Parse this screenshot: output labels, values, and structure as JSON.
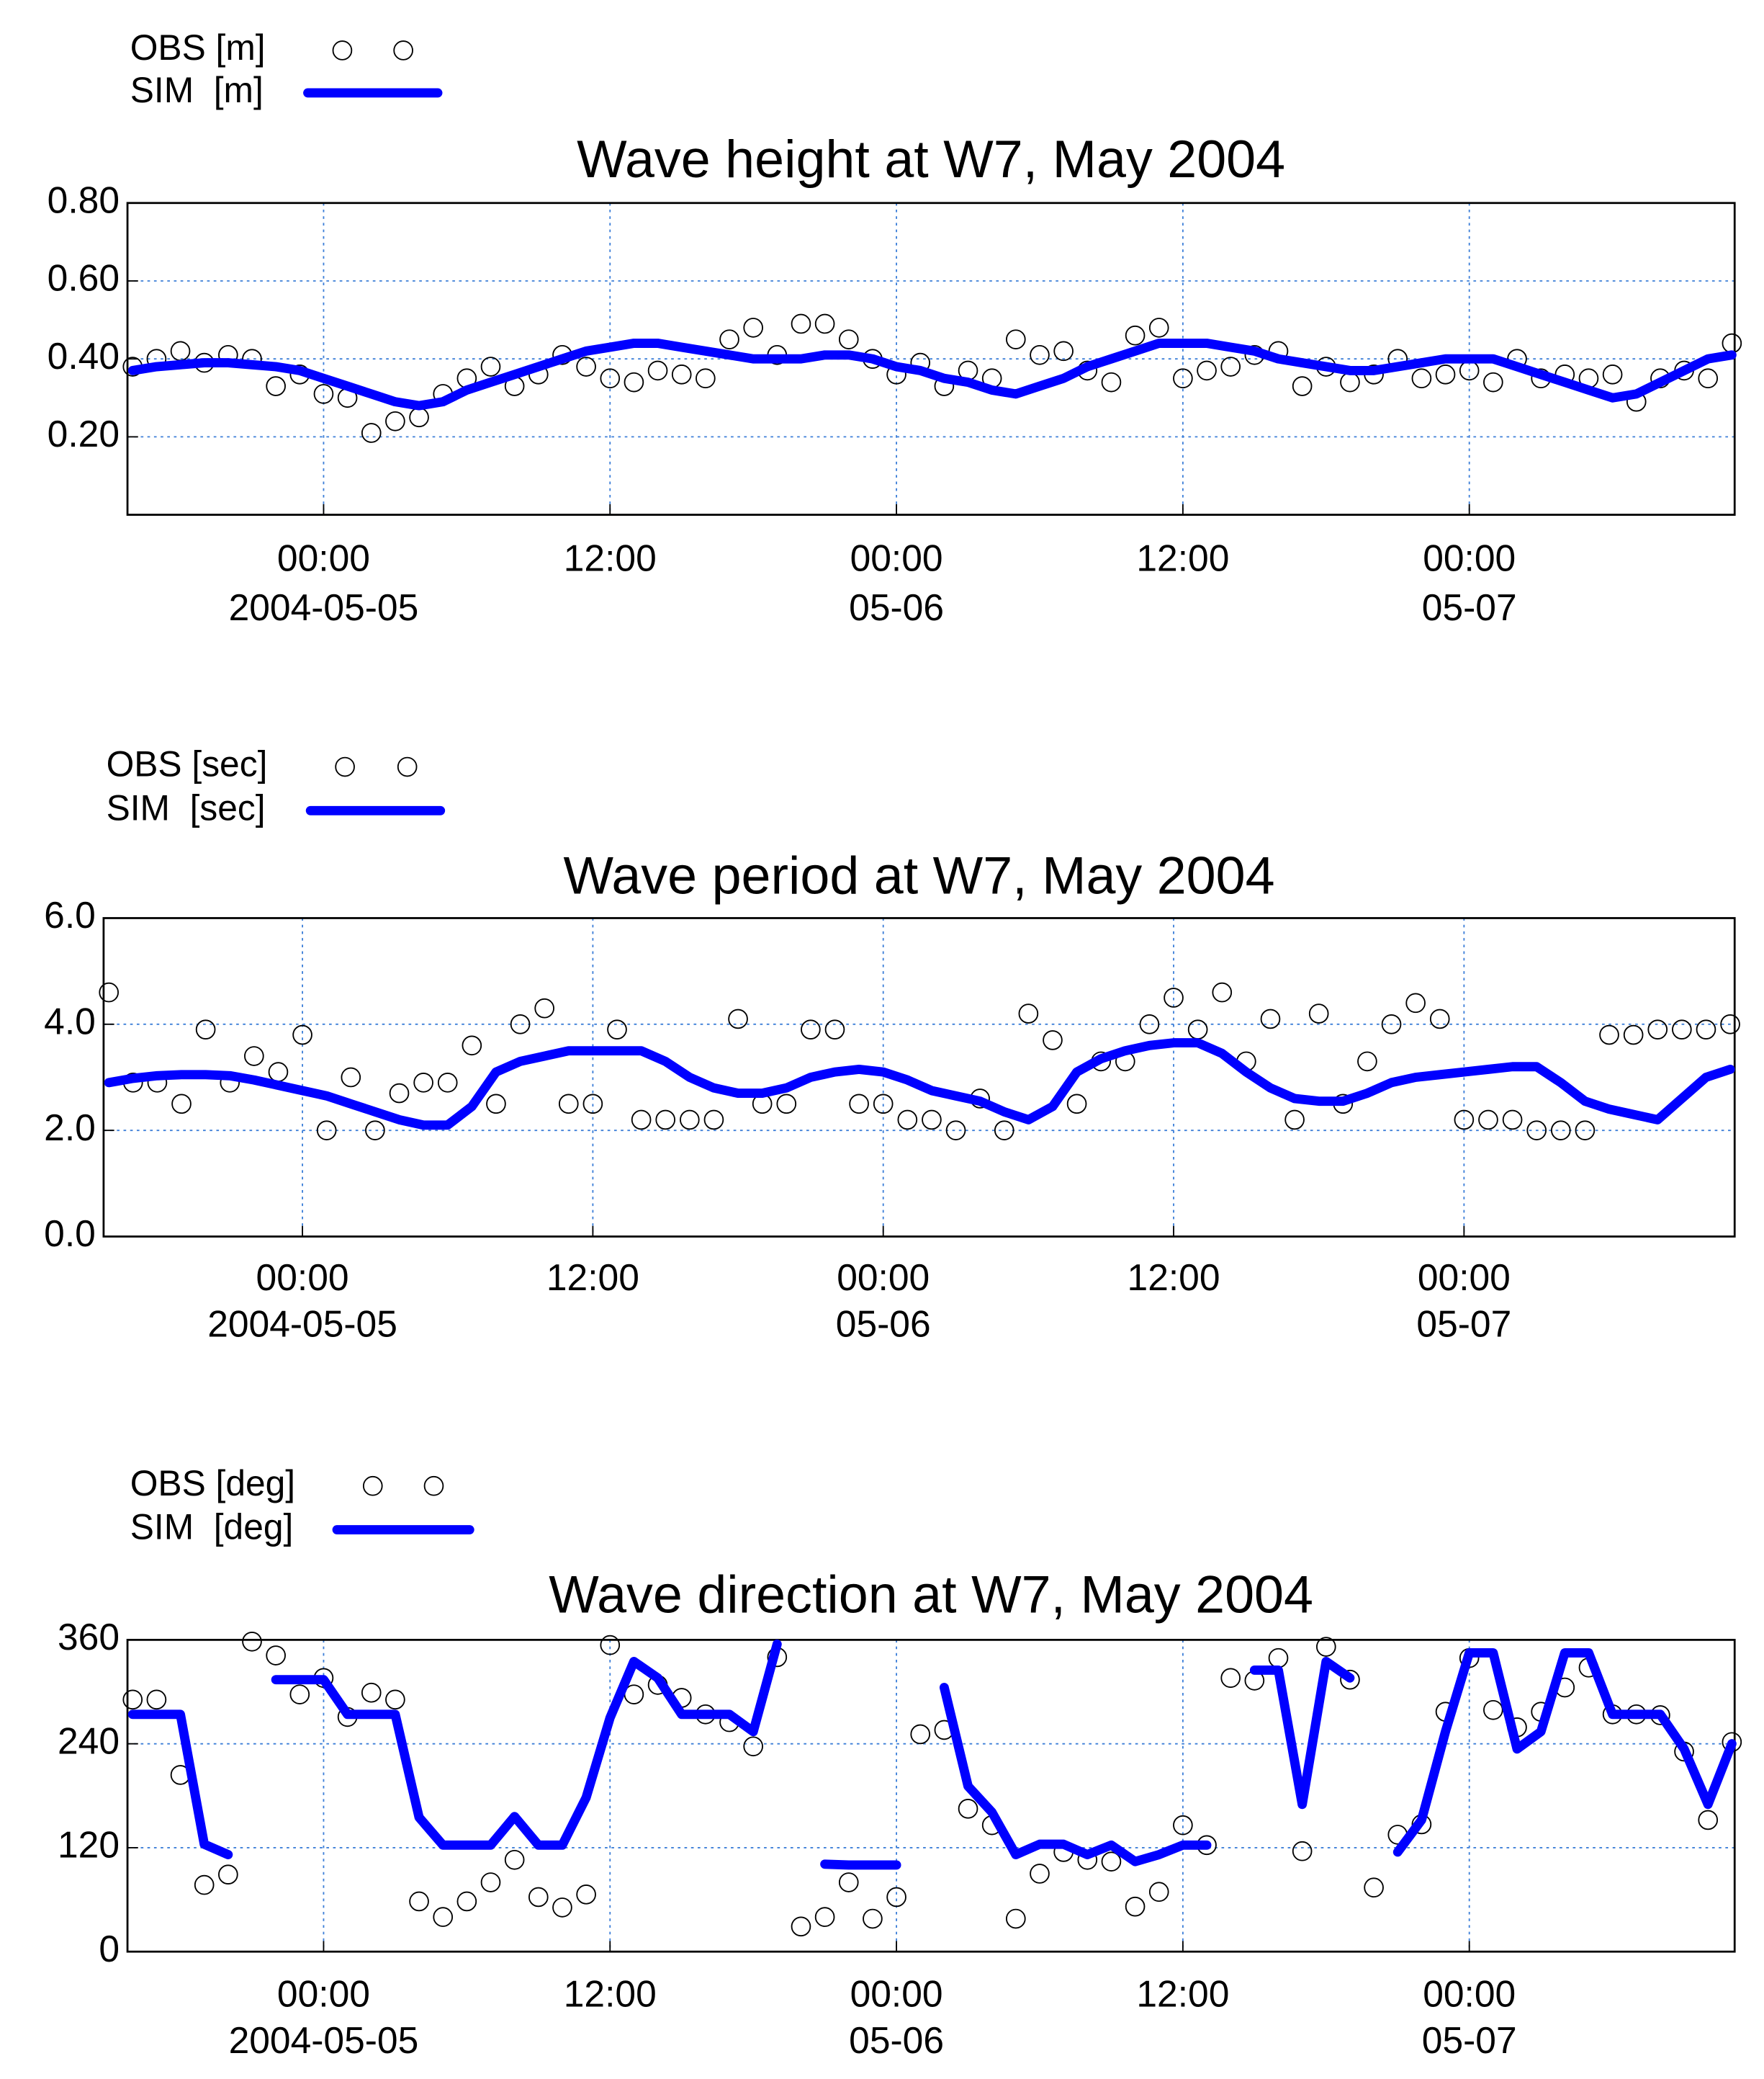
{
  "chart_data": [
    {
      "type": "line",
      "title": "Wave height at W7, May 2004",
      "x": [
        "2004-05-04 16:00",
        "2004-05-04 17:00",
        "2004-05-04 18:00",
        "2004-05-04 19:00",
        "2004-05-04 20:00",
        "2004-05-04 21:00",
        "2004-05-04 22:00",
        "2004-05-04 23:00",
        "2004-05-05 00:00",
        "2004-05-05 01:00",
        "2004-05-05 02:00",
        "2004-05-05 03:00",
        "2004-05-05 04:00",
        "2004-05-05 05:00",
        "2004-05-05 06:00",
        "2004-05-05 07:00",
        "2004-05-05 08:00",
        "2004-05-05 09:00",
        "2004-05-05 10:00",
        "2004-05-05 11:00",
        "2004-05-05 12:00",
        "2004-05-05 13:00",
        "2004-05-05 14:00",
        "2004-05-05 15:00",
        "2004-05-05 16:00",
        "2004-05-05 17:00",
        "2004-05-05 18:00",
        "2004-05-05 19:00",
        "2004-05-05 20:00",
        "2004-05-05 21:00",
        "2004-05-05 22:00",
        "2004-05-05 23:00",
        "2004-05-06 00:00",
        "2004-05-06 01:00",
        "2004-05-06 02:00",
        "2004-05-06 03:00",
        "2004-05-06 04:00",
        "2004-05-06 05:00",
        "2004-05-06 06:00",
        "2004-05-06 07:00",
        "2004-05-06 08:00",
        "2004-05-06 09:00",
        "2004-05-06 10:00",
        "2004-05-06 11:00",
        "2004-05-06 12:00",
        "2004-05-06 13:00",
        "2004-05-06 14:00",
        "2004-05-06 15:00",
        "2004-05-06 16:00",
        "2004-05-06 17:00",
        "2004-05-06 18:00",
        "2004-05-06 19:00",
        "2004-05-06 20:00",
        "2004-05-06 21:00",
        "2004-05-06 22:00",
        "2004-05-06 23:00",
        "2004-05-07 00:00",
        "2004-05-07 01:00",
        "2004-05-07 02:00",
        "2004-05-07 03:00",
        "2004-05-07 04:00",
        "2004-05-07 05:00",
        "2004-05-07 06:00",
        "2004-05-07 07:00",
        "2004-05-07 08:00",
        "2004-05-07 09:00",
        "2004-05-07 10:00",
        "2004-05-07 11:00"
      ],
      "series": [
        {
          "name": "OBS [m]",
          "mode": "markers",
          "color": "#000000",
          "values": [
            0.38,
            0.4,
            0.42,
            0.39,
            0.41,
            0.4,
            0.33,
            0.36,
            0.31,
            0.3,
            0.21,
            0.24,
            0.25,
            0.31,
            0.35,
            0.38,
            0.33,
            0.36,
            0.41,
            0.38,
            0.35,
            0.34,
            0.37,
            0.36,
            0.35,
            0.45,
            0.48,
            0.41,
            0.49,
            0.49,
            0.45,
            0.4,
            0.36,
            0.39,
            0.33,
            0.37,
            0.35,
            0.45,
            0.41,
            0.42,
            0.37,
            0.34,
            0.46,
            0.48,
            0.35,
            0.37,
            0.38,
            0.41,
            0.42,
            0.33,
            0.38,
            0.34,
            0.36,
            0.4,
            0.35,
            0.36,
            0.37,
            0.34,
            0.4,
            0.35,
            0.36,
            0.35,
            0.36,
            0.29,
            0.35,
            0.37,
            0.35,
            0.44
          ]
        },
        {
          "name": "SIM  [m]",
          "mode": "line",
          "color": "#0000ff",
          "values": [
            0.37,
            0.38,
            0.385,
            0.39,
            0.39,
            0.385,
            0.38,
            0.37,
            0.35,
            0.33,
            0.31,
            0.29,
            0.28,
            0.29,
            0.32,
            0.34,
            0.36,
            0.38,
            0.4,
            0.42,
            0.43,
            0.44,
            0.44,
            0.43,
            0.42,
            0.41,
            0.4,
            0.4,
            0.4,
            0.41,
            0.41,
            0.4,
            0.38,
            0.37,
            0.35,
            0.34,
            0.32,
            0.31,
            0.33,
            0.35,
            0.38,
            0.4,
            0.42,
            0.44,
            0.44,
            0.44,
            0.43,
            0.42,
            0.4,
            0.39,
            0.38,
            0.37,
            0.37,
            0.38,
            0.39,
            0.4,
            0.4,
            0.4,
            0.38,
            0.36,
            0.34,
            0.32,
            0.3,
            0.31,
            0.34,
            0.37,
            0.4,
            0.41
          ]
        }
      ],
      "xlim": [
        "2004-05-04 15:47",
        "2004-05-07 11:07"
      ],
      "xticks": [
        {
          "value": "2004-05-05 00:00",
          "label": [
            "00:00",
            "2004-05-05"
          ]
        },
        {
          "value": "2004-05-05 12:00",
          "label": [
            "12:00"
          ]
        },
        {
          "value": "2004-05-06 00:00",
          "label": [
            "00:00",
            "05-06"
          ]
        },
        {
          "value": "2004-05-06 12:00",
          "label": [
            "12:00"
          ]
        },
        {
          "value": "2004-05-07 00:00",
          "label": [
            "00:00",
            "05-07"
          ]
        }
      ],
      "ylim": [
        0,
        0.8
      ],
      "yticks": [
        {
          "value": 0.2,
          "label": "0.20"
        },
        {
          "value": 0.4,
          "label": "0.40"
        },
        {
          "value": 0.6,
          "label": "0.60"
        },
        {
          "value": 0.8,
          "label": "0.80"
        }
      ],
      "grid": true
    },
    {
      "type": "line",
      "title": "Wave period at W7, May 2004",
      "x": [
        "2004-05-04 16:00",
        "2004-05-04 17:00",
        "2004-05-04 18:00",
        "2004-05-04 19:00",
        "2004-05-04 20:00",
        "2004-05-04 21:00",
        "2004-05-04 22:00",
        "2004-05-04 23:00",
        "2004-05-05 00:00",
        "2004-05-05 01:00",
        "2004-05-05 02:00",
        "2004-05-05 03:00",
        "2004-05-05 04:00",
        "2004-05-05 05:00",
        "2004-05-05 06:00",
        "2004-05-05 07:00",
        "2004-05-05 08:00",
        "2004-05-05 09:00",
        "2004-05-05 10:00",
        "2004-05-05 11:00",
        "2004-05-05 12:00",
        "2004-05-05 13:00",
        "2004-05-05 14:00",
        "2004-05-05 15:00",
        "2004-05-05 16:00",
        "2004-05-05 17:00",
        "2004-05-05 18:00",
        "2004-05-05 19:00",
        "2004-05-05 20:00",
        "2004-05-05 21:00",
        "2004-05-05 22:00",
        "2004-05-05 23:00",
        "2004-05-06 00:00",
        "2004-05-06 01:00",
        "2004-05-06 02:00",
        "2004-05-06 03:00",
        "2004-05-06 04:00",
        "2004-05-06 05:00",
        "2004-05-06 06:00",
        "2004-05-06 07:00",
        "2004-05-06 08:00",
        "2004-05-06 09:00",
        "2004-05-06 10:00",
        "2004-05-06 11:00",
        "2004-05-06 12:00",
        "2004-05-06 13:00",
        "2004-05-06 14:00",
        "2004-05-06 15:00",
        "2004-05-06 16:00",
        "2004-05-06 17:00",
        "2004-05-06 18:00",
        "2004-05-06 19:00",
        "2004-05-06 20:00",
        "2004-05-06 21:00",
        "2004-05-06 22:00",
        "2004-05-06 23:00",
        "2004-05-07 00:00",
        "2004-05-07 01:00",
        "2004-05-07 02:00",
        "2004-05-07 03:00",
        "2004-05-07 04:00",
        "2004-05-07 05:00",
        "2004-05-07 06:00",
        "2004-05-07 07:00",
        "2004-05-07 08:00",
        "2004-05-07 09:00",
        "2004-05-07 10:00",
        "2004-05-07 11:00"
      ],
      "series": [
        {
          "name": "OBS [sec]",
          "mode": "markers",
          "color": "#000000",
          "values": [
            4.6,
            2.9,
            2.9,
            2.5,
            3.9,
            2.9,
            3.4,
            3.1,
            3.8,
            2.0,
            3.0,
            2.0,
            2.7,
            2.9,
            2.9,
            3.6,
            2.5,
            4.0,
            4.3,
            2.5,
            2.5,
            3.9,
            2.2,
            2.2,
            2.2,
            2.2,
            4.1,
            2.5,
            2.5,
            3.9,
            3.9,
            2.5,
            2.5,
            2.2,
            2.2,
            2.0,
            2.6,
            2.0,
            4.2,
            3.7,
            2.5,
            3.3,
            3.3,
            4.0,
            4.5,
            3.9,
            4.6,
            3.3,
            4.1,
            2.2,
            4.2,
            2.5,
            3.3,
            4.0,
            4.4,
            4.1,
            2.2,
            2.2,
            2.2,
            2.0,
            2.0,
            2.0,
            3.8,
            3.8,
            3.9,
            3.9,
            3.9,
            4.0
          ]
        },
        {
          "name": "SIM  [sec]",
          "mode": "line",
          "color": "#0000ff",
          "values": [
            2.9,
            2.98,
            3.03,
            3.05,
            3.05,
            3.03,
            2.95,
            2.85,
            2.75,
            2.65,
            2.5,
            2.35,
            2.2,
            2.1,
            2.1,
            2.45,
            3.1,
            3.3,
            3.4,
            3.5,
            3.5,
            3.5,
            3.5,
            3.3,
            3.0,
            2.8,
            2.7,
            2.7,
            2.8,
            3.0,
            3.1,
            3.15,
            3.1,
            2.95,
            2.75,
            2.65,
            2.55,
            2.35,
            2.2,
            2.45,
            3.1,
            3.35,
            3.5,
            3.6,
            3.65,
            3.65,
            3.45,
            3.1,
            2.8,
            2.6,
            2.55,
            2.55,
            2.7,
            2.9,
            3.0,
            3.05,
            3.1,
            3.15,
            3.2,
            3.2,
            2.9,
            2.55,
            2.4,
            2.3,
            2.2,
            2.6,
            3.0,
            3.15
          ]
        }
      ],
      "xlim": [
        "2004-05-04 15:47",
        "2004-05-07 11:11"
      ],
      "xticks": [
        {
          "value": "2004-05-05 00:00",
          "label": [
            "00:00",
            "2004-05-05"
          ]
        },
        {
          "value": "2004-05-05 12:00",
          "label": [
            "12:00"
          ]
        },
        {
          "value": "2004-05-06 00:00",
          "label": [
            "00:00",
            "05-06"
          ]
        },
        {
          "value": "2004-05-06 12:00",
          "label": [
            "12:00"
          ]
        },
        {
          "value": "2004-05-07 00:00",
          "label": [
            "00:00",
            "05-07"
          ]
        }
      ],
      "ylim": [
        0,
        6
      ],
      "yticks": [
        {
          "value": 0,
          "label": "0.0"
        },
        {
          "value": 2,
          "label": "2.0"
        },
        {
          "value": 4,
          "label": "4.0"
        },
        {
          "value": 6,
          "label": "6.0"
        }
      ],
      "grid": true
    },
    {
      "type": "line",
      "title": "Wave direction at W7, May 2004",
      "x": [
        "2004-05-04 16:00",
        "2004-05-04 17:00",
        "2004-05-04 18:00",
        "2004-05-04 19:00",
        "2004-05-04 20:00",
        "2004-05-04 21:00",
        "2004-05-04 22:00",
        "2004-05-04 23:00",
        "2004-05-05 00:00",
        "2004-05-05 01:00",
        "2004-05-05 02:00",
        "2004-05-05 03:00",
        "2004-05-05 04:00",
        "2004-05-05 05:00",
        "2004-05-05 06:00",
        "2004-05-05 07:00",
        "2004-05-05 08:00",
        "2004-05-05 09:00",
        "2004-05-05 10:00",
        "2004-05-05 11:00",
        "2004-05-05 12:00",
        "2004-05-05 13:00",
        "2004-05-05 14:00",
        "2004-05-05 15:00",
        "2004-05-05 16:00",
        "2004-05-05 17:00",
        "2004-05-05 18:00",
        "2004-05-05 19:00",
        "2004-05-05 20:00",
        "2004-05-05 21:00",
        "2004-05-05 22:00",
        "2004-05-05 23:00",
        "2004-05-06 00:00",
        "2004-05-06 01:00",
        "2004-05-06 02:00",
        "2004-05-06 03:00",
        "2004-05-06 04:00",
        "2004-05-06 05:00",
        "2004-05-06 06:00",
        "2004-05-06 07:00",
        "2004-05-06 08:00",
        "2004-05-06 09:00",
        "2004-05-06 10:00",
        "2004-05-06 11:00",
        "2004-05-06 12:00",
        "2004-05-06 13:00",
        "2004-05-06 14:00",
        "2004-05-06 15:00",
        "2004-05-06 16:00",
        "2004-05-06 17:00",
        "2004-05-06 18:00",
        "2004-05-06 19:00",
        "2004-05-06 20:00",
        "2004-05-06 21:00",
        "2004-05-06 22:00",
        "2004-05-06 23:00",
        "2004-05-07 00:00",
        "2004-05-07 01:00",
        "2004-05-07 02:00",
        "2004-05-07 03:00",
        "2004-05-07 04:00",
        "2004-05-07 05:00",
        "2004-05-07 06:00",
        "2004-05-07 07:00",
        "2004-05-07 08:00",
        "2004-05-07 09:00",
        "2004-05-07 10:00",
        "2004-05-07 11:00"
      ],
      "series": [
        {
          "name": "OBS [deg]",
          "mode": "markers",
          "color": "#000000",
          "values": [
            291,
            291,
            204,
            77,
            89,
            358,
            342,
            297,
            316,
            271,
            299,
            291,
            58,
            40,
            58,
            80,
            106,
            63,
            51,
            66,
            354,
            297,
            308,
            293,
            274,
            265,
            237,
            340,
            29,
            40,
            80,
            38,
            63,
            251,
            256,
            165,
            146,
            38,
            90,
            115,
            106,
            104,
            52,
            69,
            146,
            123,
            316,
            313,
            339,
            116,
            352,
            314,
            74,
            135,
            147,
            277,
            339,
            279,
            259,
            277,
            305,
            328,
            274,
            274,
            273,
            231,
            152,
            242
          ]
        },
        {
          "name": "SIM  [deg]",
          "mode": "line",
          "color": "#0000ff",
          "values": [
            274,
            274,
            274,
            124,
            112,
            null,
            314,
            314,
            314,
            274,
            274,
            274,
            155,
            123,
            123,
            123,
            156,
            123,
            123,
            178,
            270,
            335,
            316,
            274,
            274,
            274,
            254,
            355,
            null,
            101,
            100,
            100,
            100,
            null,
            305,
            191,
            161,
            112,
            124,
            124,
            112,
            123,
            104,
            112,
            123,
            123,
            null,
            325,
            325,
            170,
            335,
            316,
            null,
            115,
            152,
            254,
            345,
            345,
            234,
            254,
            345,
            345,
            274,
            274,
            274,
            234,
            170,
            240
          ]
        }
      ],
      "xlim": [
        "2004-05-04 15:47",
        "2004-05-07 11:07"
      ],
      "xticks": [
        {
          "value": "2004-05-05 00:00",
          "label": [
            "00:00",
            "2004-05-05"
          ]
        },
        {
          "value": "2004-05-05 12:00",
          "label": [
            "12:00"
          ]
        },
        {
          "value": "2004-05-06 00:00",
          "label": [
            "00:00",
            "05-06"
          ]
        },
        {
          "value": "2004-05-06 12:00",
          "label": [
            "12:00"
          ]
        },
        {
          "value": "2004-05-07 00:00",
          "label": [
            "00:00",
            "05-07"
          ]
        }
      ],
      "ylim": [
        0,
        360
      ],
      "yticks": [
        0,
        120,
        240,
        360
      ],
      "grid": true
    }
  ]
}
